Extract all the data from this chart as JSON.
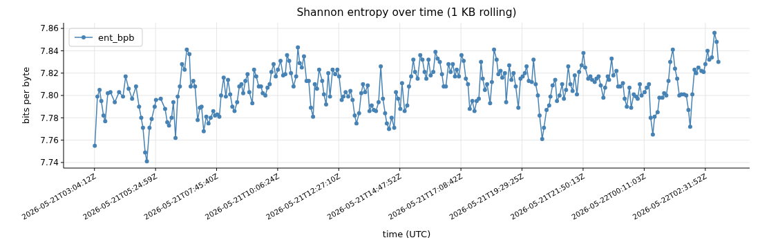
{
  "chart_data": {
    "type": "line",
    "title": "Shannon entropy over time (1 KB rolling)",
    "xlabel": "time (UTC)",
    "ylabel": "bits per byte",
    "x": [
      "2026-05-21T03:05",
      "2026-05-21T03:11",
      "2026-05-21T03:16",
      "2026-05-21T03:20",
      "2026-05-21T03:25",
      "2026-05-21T03:29",
      "2026-05-21T03:35",
      "2026-05-21T03:41",
      "2026-05-21T03:51",
      "2026-05-21T04:01",
      "2026-05-21T04:10",
      "2026-05-21T04:16",
      "2026-05-21T04:23",
      "2026-05-21T04:31",
      "2026-05-21T04:40",
      "2026-05-21T04:47",
      "2026-05-21T04:52",
      "2026-05-21T04:56",
      "2026-05-21T05:01",
      "2026-05-21T05:05",
      "2026-05-21T05:11",
      "2026-05-21T05:16",
      "2026-05-21T05:23",
      "2026-05-21T05:26",
      "2026-05-21T05:37",
      "2026-05-21T05:47",
      "2026-05-21T05:52",
      "2026-05-21T05:56",
      "2026-05-21T06:02",
      "2026-05-21T06:06",
      "2026-05-21T06:11",
      "2026-05-21T06:16",
      "2026-05-21T06:21",
      "2026-05-21T06:26",
      "2026-05-21T06:32",
      "2026-05-21T06:37",
      "2026-05-21T06:43",
      "2026-05-21T06:46",
      "2026-05-21T06:52",
      "2026-05-21T06:56",
      "2026-05-21T07:02",
      "2026-05-21T07:07",
      "2026-05-21T07:11",
      "2026-05-21T07:16",
      "2026-05-21T07:22",
      "2026-05-21T07:27",
      "2026-05-21T07:32",
      "2026-05-21T07:38",
      "2026-05-21T07:42",
      "2026-05-21T07:47",
      "2026-05-21T07:52",
      "2026-05-21T07:56",
      "2026-05-21T08:02",
      "2026-05-21T08:07",
      "2026-05-21T08:12",
      "2026-05-21T08:17",
      "2026-05-21T08:22",
      "2026-05-21T08:27",
      "2026-05-21T08:33",
      "2026-05-21T08:38",
      "2026-05-21T08:43",
      "2026-05-21T08:47",
      "2026-05-21T08:52",
      "2026-05-21T08:57",
      "2026-05-21T09:01",
      "2026-05-21T09:08",
      "2026-05-21T09:12",
      "2026-05-21T09:17",
      "2026-05-21T09:23",
      "2026-05-21T09:28",
      "2026-05-21T09:32",
      "2026-05-21T09:38",
      "2026-05-21T09:43",
      "2026-05-21T09:48",
      "2026-05-21T09:52",
      "2026-05-21T09:57",
      "2026-05-21T10:02",
      "2026-05-21T10:07",
      "2026-05-21T10:13",
      "2026-05-21T10:19",
      "2026-05-21T10:24",
      "2026-05-21T10:28",
      "2026-05-21T10:33",
      "2026-05-21T10:37",
      "2026-05-21T10:43",
      "2026-05-21T10:49",
      "2026-05-21T10:53",
      "2026-05-21T10:57",
      "2026-05-21T11:02",
      "2026-05-21T11:07",
      "2026-05-21T11:13",
      "2026-05-21T11:18",
      "2026-05-21T11:23",
      "2026-05-21T11:28",
      "2026-05-21T11:32",
      "2026-05-21T11:37",
      "2026-05-21T11:42",
      "2026-05-21T11:49",
      "2026-05-21T11:53",
      "2026-05-21T11:58",
      "2026-05-21T12:03",
      "2026-05-21T12:07",
      "2026-05-21T12:13",
      "2026-05-21T12:19",
      "2026-05-21T12:24",
      "2026-05-21T12:28",
      "2026-05-21T12:34",
      "2026-05-21T12:38",
      "2026-05-21T12:43",
      "2026-05-21T12:49",
      "2026-05-21T12:54",
      "2026-05-21T12:59",
      "2026-05-21T13:04",
      "2026-05-21T13:08",
      "2026-05-21T13:14",
      "2026-05-21T13:19",
      "2026-05-21T13:23",
      "2026-05-21T13:28",
      "2026-05-21T13:34",
      "2026-05-21T13:38",
      "2026-05-21T13:43",
      "2026-05-21T13:48",
      "2026-05-21T13:53",
      "2026-05-21T13:59",
      "2026-05-21T14:04",
      "2026-05-21T14:09",
      "2026-05-21T14:14",
      "2026-05-21T14:18",
      "2026-05-21T14:23",
      "2026-05-21T14:29",
      "2026-05-21T14:35",
      "2026-05-21T14:39",
      "2026-05-21T14:44",
      "2026-05-21T14:49",
      "2026-05-21T14:53",
      "2026-05-21T14:59",
      "2026-05-21T15:05",
      "2026-05-21T15:09",
      "2026-05-21T15:14",
      "2026-05-21T15:19",
      "2026-05-21T15:23",
      "2026-05-21T15:29",
      "2026-05-21T15:35",
      "2026-05-21T15:40",
      "2026-05-21T15:45",
      "2026-05-21T15:49",
      "2026-05-21T15:54",
      "2026-05-21T15:59",
      "2026-05-21T16:05",
      "2026-05-21T16:10",
      "2026-05-21T16:15",
      "2026-05-21T16:20",
      "2026-05-21T16:25",
      "2026-05-21T16:29",
      "2026-05-21T16:34",
      "2026-05-21T16:40",
      "2026-05-21T16:45",
      "2026-05-21T16:50",
      "2026-05-21T16:55",
      "2026-05-21T16:59",
      "2026-05-21T17:04",
      "2026-05-21T17:10",
      "2026-05-21T17:15",
      "2026-05-21T17:20",
      "2026-05-21T17:25",
      "2026-05-21T17:29",
      "2026-05-21T17:35",
      "2026-05-21T17:40",
      "2026-05-21T17:45",
      "2026-05-21T17:50",
      "2026-05-21T17:55",
      "2026-05-21T17:59",
      "2026-05-21T18:04",
      "2026-05-21T18:09",
      "2026-05-21T18:16",
      "2026-05-21T18:20",
      "2026-05-21T18:25",
      "2026-05-21T18:31",
      "2026-05-21T18:35",
      "2026-05-21T18:40",
      "2026-05-21T18:44",
      "2026-05-21T18:50",
      "2026-05-21T18:53",
      "2026-05-21T19:00",
      "2026-05-21T19:05",
      "2026-05-21T19:10",
      "2026-05-21T19:15",
      "2026-05-21T19:21",
      "2026-05-21T19:26",
      "2026-05-21T19:31",
      "2026-05-21T19:36",
      "2026-05-21T19:40",
      "2026-05-21T19:45",
      "2026-05-21T19:52",
      "2026-05-21T19:56",
      "2026-05-21T20:01",
      "2026-05-21T20:06",
      "2026-05-21T20:10",
      "2026-05-21T20:16",
      "2026-05-21T20:20",
      "2026-05-21T20:26",
      "2026-05-21T20:32",
      "2026-05-21T20:35",
      "2026-05-21T20:40",
      "2026-05-21T20:46",
      "2026-05-21T20:50",
      "2026-05-21T20:56",
      "2026-05-21T21:02",
      "2026-05-21T21:06",
      "2026-05-21T21:11",
      "2026-05-21T21:16",
      "2026-05-21T21:21",
      "2026-05-21T21:26",
      "2026-05-21T21:31",
      "2026-05-21T21:36",
      "2026-05-21T21:41",
      "2026-05-21T21:47",
      "2026-05-21T21:51",
      "2026-05-21T21:55",
      "2026-05-21T22:02",
      "2026-05-21T22:07",
      "2026-05-21T22:11",
      "2026-05-21T22:17",
      "2026-05-21T22:21",
      "2026-05-21T22:26",
      "2026-05-21T22:31",
      "2026-05-21T22:37",
      "2026-05-21T22:41",
      "2026-05-21T22:47",
      "2026-05-21T22:50",
      "2026-05-21T22:56",
      "2026-05-21T23:00",
      "2026-05-21T23:07",
      "2026-05-21T23:11",
      "2026-05-21T23:16",
      "2026-05-21T23:22",
      "2026-05-21T23:26",
      "2026-05-21T23:31",
      "2026-05-21T23:37",
      "2026-05-21T23:41",
      "2026-05-21T23:47",
      "2026-05-21T23:52",
      "2026-05-21T23:56",
      "2026-05-22T00:01",
      "2026-05-22T00:05",
      "2026-05-22T00:12",
      "2026-05-22T00:17",
      "2026-05-22T00:22",
      "2026-05-22T00:26",
      "2026-05-22T00:31",
      "2026-05-22T00:35",
      "2026-05-22T00:42",
      "2026-05-22T00:46",
      "2026-05-22T00:53",
      "2026-05-22T00:57",
      "2026-05-22T01:02",
      "2026-05-22T01:07",
      "2026-05-22T01:11",
      "2026-05-22T01:17",
      "2026-05-22T01:22",
      "2026-05-22T01:27",
      "2026-05-22T01:32",
      "2026-05-22T01:37",
      "2026-05-22T01:43",
      "2026-05-22T01:48",
      "2026-05-22T01:53",
      "2026-05-22T01:57",
      "2026-05-22T02:02",
      "2026-05-22T02:07",
      "2026-05-22T02:11",
      "2026-05-22T02:16",
      "2026-05-22T02:23",
      "2026-05-22T02:28",
      "2026-05-22T02:32",
      "2026-05-22T02:37",
      "2026-05-22T02:41",
      "2026-05-22T02:47",
      "2026-05-22T02:53",
      "2026-05-22T02:58",
      "2026-05-22T03:02"
    ],
    "series": [
      {
        "name": "ent_bpb",
        "color": "#4682b4",
        "values": [
          7.755,
          7.799,
          7.805,
          7.795,
          7.782,
          7.777,
          7.802,
          7.803,
          7.794,
          7.803,
          7.799,
          7.817,
          7.806,
          7.797,
          7.808,
          7.79,
          7.78,
          7.771,
          7.749,
          7.741,
          7.771,
          7.779,
          7.79,
          7.796,
          7.797,
          7.788,
          7.776,
          7.773,
          7.78,
          7.794,
          7.762,
          7.799,
          7.808,
          7.828,
          7.823,
          7.841,
          7.837,
          7.808,
          7.813,
          7.808,
          7.778,
          7.789,
          7.79,
          7.768,
          7.781,
          7.775,
          7.78,
          7.786,
          7.782,
          7.783,
          7.781,
          7.8,
          7.816,
          7.799,
          7.814,
          7.801,
          7.79,
          7.786,
          7.794,
          7.808,
          7.81,
          7.802,
          7.813,
          7.819,
          7.803,
          7.793,
          7.823,
          7.817,
          7.808,
          7.808,
          7.802,
          7.8,
          7.807,
          7.81,
          7.821,
          7.828,
          7.817,
          7.823,
          7.831,
          7.818,
          7.819,
          7.836,
          7.831,
          7.82,
          7.808,
          7.817,
          7.843,
          7.829,
          7.825,
          7.835,
          7.813,
          7.813,
          7.789,
          7.781,
          7.81,
          7.806,
          7.823,
          7.813,
          7.801,
          7.792,
          7.82,
          7.799,
          7.823,
          7.819,
          7.823,
          7.817,
          7.796,
          7.799,
          7.803,
          7.799,
          7.804,
          7.796,
          7.782,
          7.775,
          7.784,
          7.802,
          7.81,
          7.803,
          7.809,
          7.786,
          7.791,
          7.787,
          7.786,
          7.794,
          7.826,
          7.797,
          7.784,
          7.775,
          7.77,
          7.78,
          7.771,
          7.803,
          7.797,
          7.788,
          7.811,
          7.786,
          7.791,
          7.808,
          7.817,
          7.832,
          7.821,
          7.815,
          7.836,
          7.832,
          7.821,
          7.815,
          7.832,
          7.818,
          7.821,
          7.839,
          7.833,
          7.83,
          7.819,
          7.808,
          7.808,
          7.828,
          7.821,
          7.828,
          7.817,
          7.823,
          7.817,
          7.836,
          7.831,
          7.815,
          7.81,
          7.788,
          7.795,
          7.786,
          7.795,
          7.797,
          7.83,
          7.815,
          7.805,
          7.81,
          7.793,
          7.812,
          7.841,
          7.832,
          7.819,
          7.822,
          7.816,
          7.82,
          7.794,
          7.827,
          7.814,
          7.82,
          7.808,
          7.789,
          7.815,
          7.817,
          7.82,
          7.826,
          7.813,
          7.812,
          7.832,
          7.81,
          7.8,
          7.782,
          7.761,
          7.771,
          7.787,
          7.791,
          7.799,
          7.809,
          7.814,
          7.795,
          7.8,
          7.81,
          7.797,
          7.805,
          7.826,
          7.81,
          7.804,
          7.818,
          7.801,
          7.821,
          7.827,
          7.838,
          7.825,
          7.815,
          7.817,
          7.814,
          7.812,
          7.815,
          7.817,
          7.809,
          7.798,
          7.807,
          7.817,
          7.814,
          7.833,
          7.818,
          7.822,
          7.808,
          7.808,
          7.811,
          7.797,
          7.79,
          7.807,
          7.789,
          7.801,
          7.799,
          7.797,
          7.81,
          7.8,
          7.803,
          7.807,
          7.81,
          7.78,
          7.765,
          7.781,
          7.785,
          7.798,
          7.798,
          7.802,
          7.8,
          7.813,
          7.83,
          7.841,
          7.824,
          7.815,
          7.8,
          7.801,
          7.801,
          7.8,
          7.787,
          7.772,
          7.801,
          7.823,
          7.82,
          7.825,
          7.822,
          7.821,
          7.828,
          7.84,
          7.832,
          7.834,
          7.856,
          7.848,
          7.83
        ]
      }
    ],
    "xlim": [
      "2026-05-21T01:53",
      "2026-05-22T04:14"
    ],
    "xticks": [
      {
        "value": "2026-05-21T03:04:12",
        "label": "2026-05-21T03:04:12Z"
      },
      {
        "value": "2026-05-21T05:24:59",
        "label": "2026-05-21T05:24:59Z"
      },
      {
        "value": "2026-05-21T07:45:40",
        "label": "2026-05-21T07:45:40Z"
      },
      {
        "value": "2026-05-21T10:06:24",
        "label": "2026-05-21T10:06:24Z"
      },
      {
        "value": "2026-05-21T12:27:10",
        "label": "2026-05-21T12:27:10Z"
      },
      {
        "value": "2026-05-21T14:47:52",
        "label": "2026-05-21T14:47:52Z"
      },
      {
        "value": "2026-05-21T17:08:42",
        "label": "2026-05-21T17:08:42Z"
      },
      {
        "value": "2026-05-21T19:29:25",
        "label": "2026-05-21T19:29:25Z"
      },
      {
        "value": "2026-05-21T21:50:13",
        "label": "2026-05-21T21:50:13Z"
      },
      {
        "value": "2026-05-22T00:11:03",
        "label": "2026-05-22T00:11:03Z"
      },
      {
        "value": "2026-05-22T02:31:52",
        "label": "2026-05-22T02:31:52Z"
      }
    ],
    "ylim": [
      7.735,
      7.865
    ],
    "yticks": [
      {
        "value": 7.74,
        "label": "7.74"
      },
      {
        "value": 7.76,
        "label": "7.76"
      },
      {
        "value": 7.78,
        "label": "7.78"
      },
      {
        "value": 7.8,
        "label": "7.80"
      },
      {
        "value": 7.82,
        "label": "7.82"
      },
      {
        "value": 7.84,
        "label": "7.84"
      },
      {
        "value": 7.86,
        "label": "7.86"
      }
    ],
    "grid": true,
    "legend": "top left",
    "marker": "circle",
    "line_style": "solid"
  }
}
